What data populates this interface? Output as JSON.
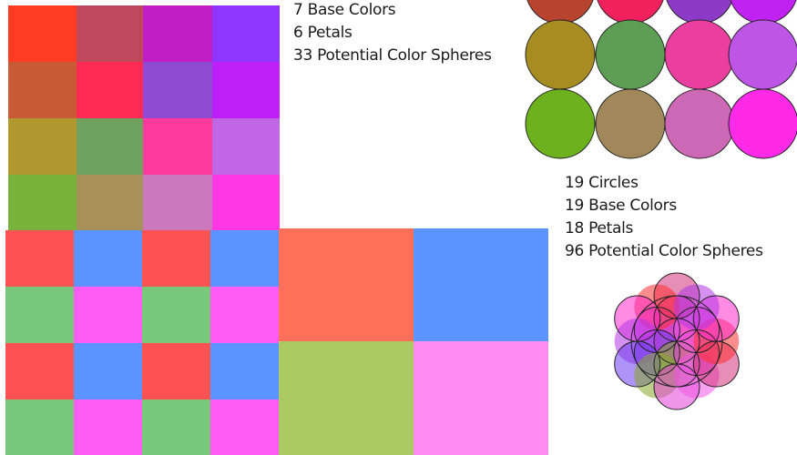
{
  "top_stats": {
    "lines": [
      "7 Base Colors",
      "6 Petals",
      "33  Potential Color Spheres"
    ]
  },
  "right_stats": {
    "lines": [
      "19 Circles",
      "19 Base Colors",
      "18 Petals",
      "96 Potential Color Spheres"
    ]
  },
  "top_grid_colors": [
    [
      "#ff3b24",
      "#c0485c",
      "#c01ec6",
      "#8f35ff"
    ],
    [
      "#c85b35",
      "#ff2b55",
      "#8e4bd2",
      "#bf1ff7"
    ],
    [
      "#b0972e",
      "#6fa160",
      "#ff3a9d",
      "#c266e8"
    ],
    [
      "#79b23a",
      "#a8905a",
      "#cc78bd",
      "#ff38e4"
    ]
  ],
  "bottom_left_pattern": {
    "cell_colors": [
      "#ff5252",
      "#5b93ff",
      "#79c77a",
      "#ff5cf4"
    ]
  },
  "big_quads": {
    "colors": [
      "#ff6f5a",
      "#5b95ff",
      "#acca63",
      "#ff8af0"
    ]
  },
  "circle_grid_colors": [
    [
      "#b8432e",
      "#f2205c",
      "#8d3ac8",
      "#c022f2"
    ],
    [
      "#a78d21",
      "#5c9e54",
      "#eb3fa0",
      "#bf55e6"
    ],
    [
      "#6db21e",
      "#a1875a",
      "#cd68b6",
      "#ff2ae7"
    ]
  ],
  "flower_colors": [
    "#ff3030",
    "#ff2bd0",
    "#b037e8",
    "#6c3cf0",
    "#88a82a",
    "#e43fd8",
    "#ef56e4",
    "#d4327a"
  ]
}
